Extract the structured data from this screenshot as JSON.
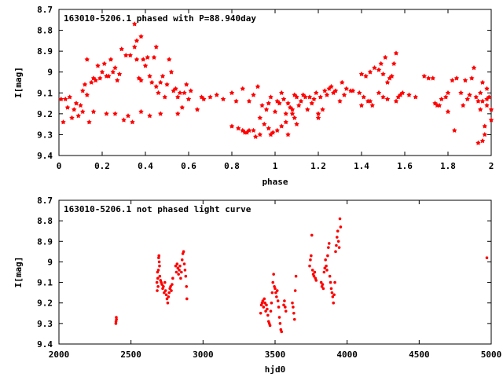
{
  "chart_data": [
    {
      "type": "scatter",
      "title": "163010-5206.1 phased with P=88.940day",
      "xlabel": "phase",
      "ylabel": "I[mag]",
      "xlim": [
        0,
        2
      ],
      "ylim": [
        9.4,
        8.7
      ],
      "y_inverted": true,
      "grid": false,
      "legend": "none",
      "marker": "star",
      "color": "#ff0000",
      "x_ticks": [
        "0",
        "0.2",
        "0.4",
        "0.6",
        "0.8",
        "1",
        "1.2",
        "1.4",
        "1.6",
        "1.8",
        "2"
      ],
      "y_ticks": [
        "8.7",
        "8.8",
        "8.9",
        "9",
        "9.1",
        "9.2",
        "9.3",
        "9.4"
      ],
      "points": [
        [
          0.01,
          9.13
        ],
        [
          0.02,
          9.24
        ],
        [
          0.03,
          9.13
        ],
        [
          0.04,
          9.17
        ],
        [
          0.05,
          9.12
        ],
        [
          0.06,
          9.22
        ],
        [
          0.07,
          9.18
        ],
        [
          0.08,
          9.15
        ],
        [
          0.09,
          9.21
        ],
        [
          0.1,
          9.16
        ],
        [
          0.11,
          9.19
        ],
        [
          0.11,
          9.09
        ],
        [
          0.12,
          9.06
        ],
        [
          0.13,
          9.11
        ],
        [
          0.14,
          9.24
        ],
        [
          0.13,
          8.94
        ],
        [
          0.15,
          9.05
        ],
        [
          0.16,
          9.03
        ],
        [
          0.17,
          9.04
        ],
        [
          0.18,
          8.97
        ],
        [
          0.19,
          9.03
        ],
        [
          0.2,
          9.0
        ],
        [
          0.21,
          8.96
        ],
        [
          0.22,
          9.02
        ],
        [
          0.23,
          9.02
        ],
        [
          0.24,
          8.94
        ],
        [
          0.25,
          9.0
        ],
        [
          0.26,
          8.98
        ],
        [
          0.27,
          9.04
        ],
        [
          0.28,
          9.01
        ],
        [
          0.29,
          8.89
        ],
        [
          0.3,
          9.23
        ],
        [
          0.31,
          8.92
        ],
        [
          0.32,
          9.21
        ],
        [
          0.33,
          8.92
        ],
        [
          0.34,
          9.24
        ],
        [
          0.35,
          8.77
        ],
        [
          0.35,
          8.88
        ],
        [
          0.36,
          8.85
        ],
        [
          0.36,
          8.94
        ],
        [
          0.37,
          9.03
        ],
        [
          0.38,
          8.83
        ],
        [
          0.38,
          9.04
        ],
        [
          0.39,
          8.94
        ],
        [
          0.4,
          8.97
        ],
        [
          0.41,
          8.93
        ],
        [
          0.42,
          9.02
        ],
        [
          0.43,
          9.05
        ],
        [
          0.44,
          8.93
        ],
        [
          0.45,
          9.07
        ],
        [
          0.45,
          8.88
        ],
        [
          0.46,
          9.1
        ],
        [
          0.47,
          9.05
        ],
        [
          0.47,
          9.2
        ],
        [
          0.48,
          9.02
        ],
        [
          0.49,
          9.12
        ],
        [
          0.5,
          9.06
        ],
        [
          0.51,
          8.94
        ],
        [
          0.52,
          9.0
        ],
        [
          0.53,
          9.09
        ],
        [
          0.54,
          9.08
        ],
        [
          0.55,
          9.12
        ],
        [
          0.56,
          9.1
        ],
        [
          0.57,
          9.17
        ],
        [
          0.58,
          9.1
        ],
        [
          0.59,
          9.06
        ],
        [
          0.6,
          9.13
        ],
        [
          0.38,
          9.19
        ],
        [
          0.42,
          9.21
        ],
        [
          0.55,
          9.2
        ],
        [
          0.16,
          9.19
        ],
        [
          0.22,
          9.2
        ],
        [
          0.26,
          9.2
        ],
        [
          0.61,
          9.09
        ],
        [
          0.64,
          9.18
        ],
        [
          0.66,
          9.12
        ],
        [
          0.67,
          9.13
        ],
        [
          0.7,
          9.12
        ],
        [
          0.73,
          9.11
        ],
        [
          0.76,
          9.13
        ],
        [
          0.8,
          9.1
        ],
        [
          0.82,
          9.14
        ],
        [
          0.85,
          9.08
        ],
        [
          0.88,
          9.14
        ],
        [
          0.9,
          9.11
        ],
        [
          0.92,
          9.07
        ],
        [
          0.94,
          9.16
        ],
        [
          0.97,
          9.15
        ],
        [
          0.8,
          9.26
        ],
        [
          0.83,
          9.27
        ],
        [
          0.85,
          9.28
        ],
        [
          0.87,
          9.29
        ],
        [
          0.88,
          9.28
        ],
        [
          0.9,
          9.28
        ],
        [
          0.91,
          9.31
        ],
        [
          0.93,
          9.3
        ],
        [
          0.95,
          9.25
        ],
        [
          0.97,
          9.27
        ],
        [
          0.99,
          9.29
        ],
        [
          1.01,
          9.28
        ],
        [
          1.03,
          9.26
        ],
        [
          1.05,
          9.24
        ],
        [
          1.06,
          9.3
        ],
        [
          0.96,
          9.18
        ],
        [
          0.98,
          9.12
        ],
        [
          1.0,
          9.19
        ],
        [
          1.01,
          9.14
        ],
        [
          1.02,
          9.15
        ],
        [
          1.03,
          9.1
        ],
        [
          1.04,
          9.13
        ],
        [
          1.05,
          9.2
        ],
        [
          1.06,
          9.15
        ],
        [
          1.07,
          9.17
        ],
        [
          1.08,
          9.2
        ],
        [
          1.09,
          9.22
        ],
        [
          1.1,
          9.12
        ],
        [
          1.11,
          9.16
        ],
        [
          1.12,
          9.14
        ],
        [
          1.13,
          9.11
        ],
        [
          1.14,
          9.12
        ],
        [
          1.15,
          9.18
        ],
        [
          1.16,
          9.12
        ],
        [
          1.17,
          9.15
        ],
        [
          1.18,
          9.13
        ],
        [
          1.19,
          9.1
        ],
        [
          1.2,
          9.2
        ],
        [
          1.21,
          9.12
        ],
        [
          1.22,
          9.18
        ],
        [
          1.23,
          9.09
        ],
        [
          1.24,
          9.11
        ],
        [
          1.25,
          9.08
        ],
        [
          1.26,
          9.07
        ],
        [
          1.27,
          9.1
        ],
        [
          1.28,
          9.09
        ],
        [
          1.3,
          9.14
        ],
        [
          1.31,
          9.05
        ],
        [
          1.32,
          9.11
        ],
        [
          1.33,
          9.08
        ],
        [
          1.35,
          9.09
        ],
        [
          1.36,
          9.09
        ],
        [
          1.39,
          9.1
        ],
        [
          1.4,
          9.16
        ],
        [
          1.41,
          9.12
        ],
        [
          1.43,
          9.14
        ],
        [
          1.44,
          9.14
        ],
        [
          1.45,
          9.16
        ],
        [
          1.4,
          9.01
        ],
        [
          1.42,
          9.02
        ],
        [
          1.44,
          9.0
        ],
        [
          1.46,
          8.98
        ],
        [
          1.48,
          8.99
        ],
        [
          1.49,
          8.96
        ],
        [
          1.5,
          9.01
        ],
        [
          1.51,
          8.93
        ],
        [
          1.52,
          9.05
        ],
        [
          1.53,
          9.03
        ],
        [
          1.54,
          9.02
        ],
        [
          1.55,
          8.96
        ],
        [
          1.56,
          8.91
        ],
        [
          1.57,
          9.12
        ],
        [
          1.59,
          9.1
        ],
        [
          1.48,
          9.1
        ],
        [
          1.5,
          9.12
        ],
        [
          1.52,
          9.13
        ],
        [
          1.56,
          9.14
        ],
        [
          1.58,
          9.11
        ],
        [
          1.62,
          9.11
        ],
        [
          1.65,
          9.12
        ],
        [
          1.69,
          9.02
        ],
        [
          1.71,
          9.03
        ],
        [
          1.73,
          9.03
        ],
        [
          1.74,
          9.15
        ],
        [
          1.77,
          9.13
        ],
        [
          1.79,
          9.12
        ],
        [
          1.82,
          9.04
        ],
        [
          1.84,
          9.03
        ],
        [
          1.86,
          9.1
        ],
        [
          1.87,
          9.16
        ],
        [
          1.88,
          9.04
        ],
        [
          1.89,
          9.13
        ],
        [
          1.9,
          9.11
        ],
        [
          1.91,
          9.03
        ],
        [
          1.92,
          8.98
        ],
        [
          1.93,
          9.12
        ],
        [
          1.94,
          9.14
        ],
        [
          1.95,
          9.1
        ],
        [
          1.95,
          9.18
        ],
        [
          1.96,
          9.05
        ],
        [
          1.96,
          9.14
        ],
        [
          1.97,
          9.26
        ],
        [
          1.97,
          9.3
        ],
        [
          1.98,
          9.16
        ],
        [
          1.98,
          9.08
        ],
        [
          1.99,
          9.12
        ],
        [
          2.0,
          9.18
        ],
        [
          2.0,
          9.23
        ],
        [
          1.75,
          9.16
        ],
        [
          1.8,
          9.19
        ],
        [
          1.83,
          9.28
        ],
        [
          1.76,
          9.16
        ],
        [
          1.8,
          9.1
        ],
        [
          1.94,
          9.34
        ],
        [
          1.96,
          9.33
        ],
        [
          1.98,
          9.13
        ],
        [
          1.2,
          9.22
        ],
        [
          1.1,
          9.25
        ],
        [
          1.08,
          9.18
        ],
        [
          1.09,
          9.11
        ],
        [
          0.98,
          9.3
        ],
        [
          0.93,
          9.22
        ],
        [
          0.86,
          9.29
        ]
      ]
    },
    {
      "type": "scatter",
      "title": "163010-5206.1 not phased light curve",
      "xlabel": "hjd0",
      "ylabel": "I[mag]",
      "xlim": [
        2000,
        5000
      ],
      "ylim": [
        9.4,
        8.7
      ],
      "y_inverted": true,
      "grid": false,
      "legend": "none",
      "marker": "dot",
      "color": "#ff0000",
      "x_ticks": [
        "2000",
        "2500",
        "3000",
        "3500",
        "4000",
        "4500",
        "5000"
      ],
      "y_ticks": [
        "8.7",
        "8.8",
        "8.9",
        "9",
        "9.1",
        "9.2",
        "9.3",
        "9.4"
      ],
      "points": [
        [
          2395,
          9.3
        ],
        [
          2396,
          9.29
        ],
        [
          2398,
          9.27
        ],
        [
          2399,
          9.28
        ],
        [
          2680,
          9.1
        ],
        [
          2682,
          9.14
        ],
        [
          2684,
          9.05
        ],
        [
          2686,
          9.08
        ],
        [
          2688,
          9.12
        ],
        [
          2690,
          9.04
        ],
        [
          2692,
          8.98
        ],
        [
          2694,
          8.97
        ],
        [
          2696,
          9.0
        ],
        [
          2698,
          9.02
        ],
        [
          2700,
          9.07
        ],
        [
          2705,
          9.09
        ],
        [
          2710,
          9.1
        ],
        [
          2715,
          9.11
        ],
        [
          2720,
          9.13
        ],
        [
          2725,
          9.12
        ],
        [
          2730,
          9.15
        ],
        [
          2735,
          9.1
        ],
        [
          2740,
          9.14
        ],
        [
          2745,
          9.16
        ],
        [
          2750,
          9.18
        ],
        [
          2755,
          9.2
        ],
        [
          2760,
          9.17
        ],
        [
          2765,
          9.15
        ],
        [
          2770,
          9.13
        ],
        [
          2775,
          9.12
        ],
        [
          2780,
          9.14
        ],
        [
          2785,
          9.11
        ],
        [
          2790,
          9.08
        ],
        [
          2810,
          9.02
        ],
        [
          2815,
          9.05
        ],
        [
          2820,
          9.01
        ],
        [
          2825,
          9.03
        ],
        [
          2830,
          9.06
        ],
        [
          2835,
          9.04
        ],
        [
          2840,
          9.02
        ],
        [
          2845,
          9.08
        ],
        [
          2850,
          9.05
        ],
        [
          2855,
          8.99
        ],
        [
          2860,
          8.96
        ],
        [
          2865,
          8.95
        ],
        [
          2870,
          9.01
        ],
        [
          2875,
          9.04
        ],
        [
          2880,
          9.07
        ],
        [
          2885,
          9.12
        ],
        [
          2888,
          9.18
        ],
        [
          3400,
          9.25
        ],
        [
          3405,
          9.21
        ],
        [
          3410,
          9.2
        ],
        [
          3415,
          9.19
        ],
        [
          3420,
          9.22
        ],
        [
          3425,
          9.18
        ],
        [
          3430,
          9.2
        ],
        [
          3435,
          9.24
        ],
        [
          3440,
          9.21
        ],
        [
          3445,
          9.23
        ],
        [
          3450,
          9.26
        ],
        [
          3455,
          9.29
        ],
        [
          3460,
          9.3
        ],
        [
          3465,
          9.31
        ],
        [
          3470,
          9.24
        ],
        [
          3475,
          9.2
        ],
        [
          3480,
          9.15
        ],
        [
          3485,
          9.1
        ],
        [
          3490,
          9.06
        ],
        [
          3495,
          9.12
        ],
        [
          3500,
          9.13
        ],
        [
          3505,
          9.15
        ],
        [
          3510,
          9.17
        ],
        [
          3515,
          9.14
        ],
        [
          3520,
          9.19
        ],
        [
          3525,
          9.22
        ],
        [
          3530,
          9.27
        ],
        [
          3535,
          9.3
        ],
        [
          3540,
          9.33
        ],
        [
          3545,
          9.34
        ],
        [
          3560,
          9.21
        ],
        [
          3565,
          9.19
        ],
        [
          3570,
          9.22
        ],
        [
          3575,
          9.24
        ],
        [
          3620,
          9.2
        ],
        [
          3625,
          9.22
        ],
        [
          3630,
          9.25
        ],
        [
          3635,
          9.28
        ],
        [
          3640,
          9.14
        ],
        [
          3645,
          9.07
        ],
        [
          3740,
          9.02
        ],
        [
          3745,
          8.99
        ],
        [
          3750,
          8.97
        ],
        [
          3755,
          8.87
        ],
        [
          3760,
          9.04
        ],
        [
          3765,
          9.06
        ],
        [
          3770,
          9.07
        ],
        [
          3775,
          9.05
        ],
        [
          3780,
          9.08
        ],
        [
          3785,
          9.09
        ],
        [
          3820,
          9.1
        ],
        [
          3825,
          9.12
        ],
        [
          3830,
          9.11
        ],
        [
          3835,
          9.13
        ],
        [
          3840,
          9.05
        ],
        [
          3845,
          9.03
        ],
        [
          3850,
          8.99
        ],
        [
          3855,
          9.02
        ],
        [
          3860,
          9.04
        ],
        [
          3865,
          8.97
        ],
        [
          3870,
          8.93
        ],
        [
          3875,
          8.91
        ],
        [
          3880,
          9.07
        ],
        [
          3885,
          9.1
        ],
        [
          3890,
          9.13
        ],
        [
          3895,
          9.15
        ],
        [
          3900,
          9.17
        ],
        [
          3905,
          9.2
        ],
        [
          3910,
          9.16
        ],
        [
          3915,
          9.1
        ],
        [
          3920,
          8.95
        ],
        [
          3925,
          8.92
        ],
        [
          3930,
          8.88
        ],
        [
          3935,
          8.85
        ],
        [
          3940,
          8.9
        ],
        [
          3945,
          8.93
        ],
        [
          3950,
          8.79
        ],
        [
          3955,
          8.83
        ],
        [
          4970,
          8.98
        ]
      ]
    }
  ]
}
